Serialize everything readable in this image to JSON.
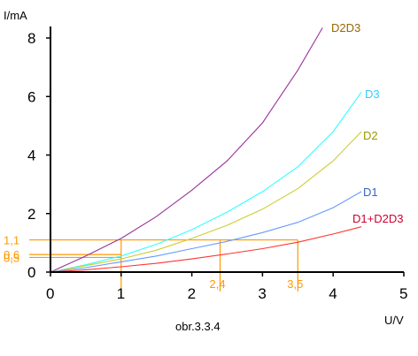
{
  "chart_data": {
    "type": "line",
    "title": "",
    "xlabel": "U/V",
    "ylabel": "I/mA",
    "caption": "obr.3.3.4",
    "xlim": [
      0,
      5
    ],
    "ylim": [
      0,
      8.5
    ],
    "x_ticks": [
      "0",
      "1",
      "2",
      "3",
      "4",
      "5"
    ],
    "y_ticks": [
      "0",
      "2",
      "4",
      "6",
      "8"
    ],
    "grid": false,
    "series": [
      {
        "name": "D2D3",
        "color": "#993399",
        "label_color": "#996600",
        "points": [
          [
            0,
            0
          ],
          [
            0.5,
            0.55
          ],
          [
            1,
            1.15
          ],
          [
            1.5,
            1.9
          ],
          [
            2,
            2.8
          ],
          [
            2.5,
            3.8
          ],
          [
            3,
            5.1
          ],
          [
            3.5,
            6.9
          ],
          [
            3.85,
            8.35
          ]
        ]
      },
      {
        "name": "D3",
        "color": "#33ffff",
        "label_color": "#33ccff",
        "points": [
          [
            0,
            0
          ],
          [
            0.5,
            0.25
          ],
          [
            1,
            0.55
          ],
          [
            1.5,
            0.95
          ],
          [
            2,
            1.45
          ],
          [
            2.5,
            2.05
          ],
          [
            3,
            2.75
          ],
          [
            3.5,
            3.6
          ],
          [
            4,
            4.8
          ],
          [
            4.4,
            6.15
          ]
        ]
      },
      {
        "name": "D2",
        "color": "#cccc33",
        "label_color": "#999900",
        "points": [
          [
            0,
            0
          ],
          [
            0.5,
            0.22
          ],
          [
            1,
            0.45
          ],
          [
            1.5,
            0.75
          ],
          [
            2,
            1.15
          ],
          [
            2.5,
            1.6
          ],
          [
            3,
            2.15
          ],
          [
            3.5,
            2.85
          ],
          [
            4,
            3.8
          ],
          [
            4.4,
            4.8
          ]
        ]
      },
      {
        "name": "D1",
        "color": "#6699ff",
        "label_color": "#3366cc",
        "points": [
          [
            0,
            0
          ],
          [
            0.5,
            0.15
          ],
          [
            1,
            0.35
          ],
          [
            1.5,
            0.55
          ],
          [
            2,
            0.8
          ],
          [
            2.5,
            1.05
          ],
          [
            3,
            1.35
          ],
          [
            3.5,
            1.7
          ],
          [
            4,
            2.2
          ],
          [
            4.4,
            2.75
          ]
        ]
      },
      {
        "name": "D1+D2D3",
        "color": "#ff3333",
        "label_color": "#cc0033",
        "points": [
          [
            0,
            0
          ],
          [
            0.5,
            0.08
          ],
          [
            1,
            0.18
          ],
          [
            1.5,
            0.3
          ],
          [
            2,
            0.45
          ],
          [
            2.5,
            0.62
          ],
          [
            3,
            0.8
          ],
          [
            3.5,
            1.02
          ],
          [
            4,
            1.3
          ],
          [
            4.4,
            1.55
          ]
        ]
      }
    ],
    "guides": {
      "color": "#ff9900",
      "horizontal": [
        {
          "y": 1.1,
          "x_end": 3.5,
          "label": "1,1"
        },
        {
          "y": 0.6,
          "x_end": 1,
          "label": "0,6"
        },
        {
          "y": 0.5,
          "x_end": 1,
          "label": "0,5"
        }
      ],
      "vertical": [
        {
          "x": 1,
          "y_top": 1.1,
          "label": ""
        },
        {
          "x": 2.4,
          "y_top": 1.1,
          "label": "2,4"
        },
        {
          "x": 3.5,
          "y_top": 1.1,
          "label": "3,5"
        }
      ]
    }
  }
}
